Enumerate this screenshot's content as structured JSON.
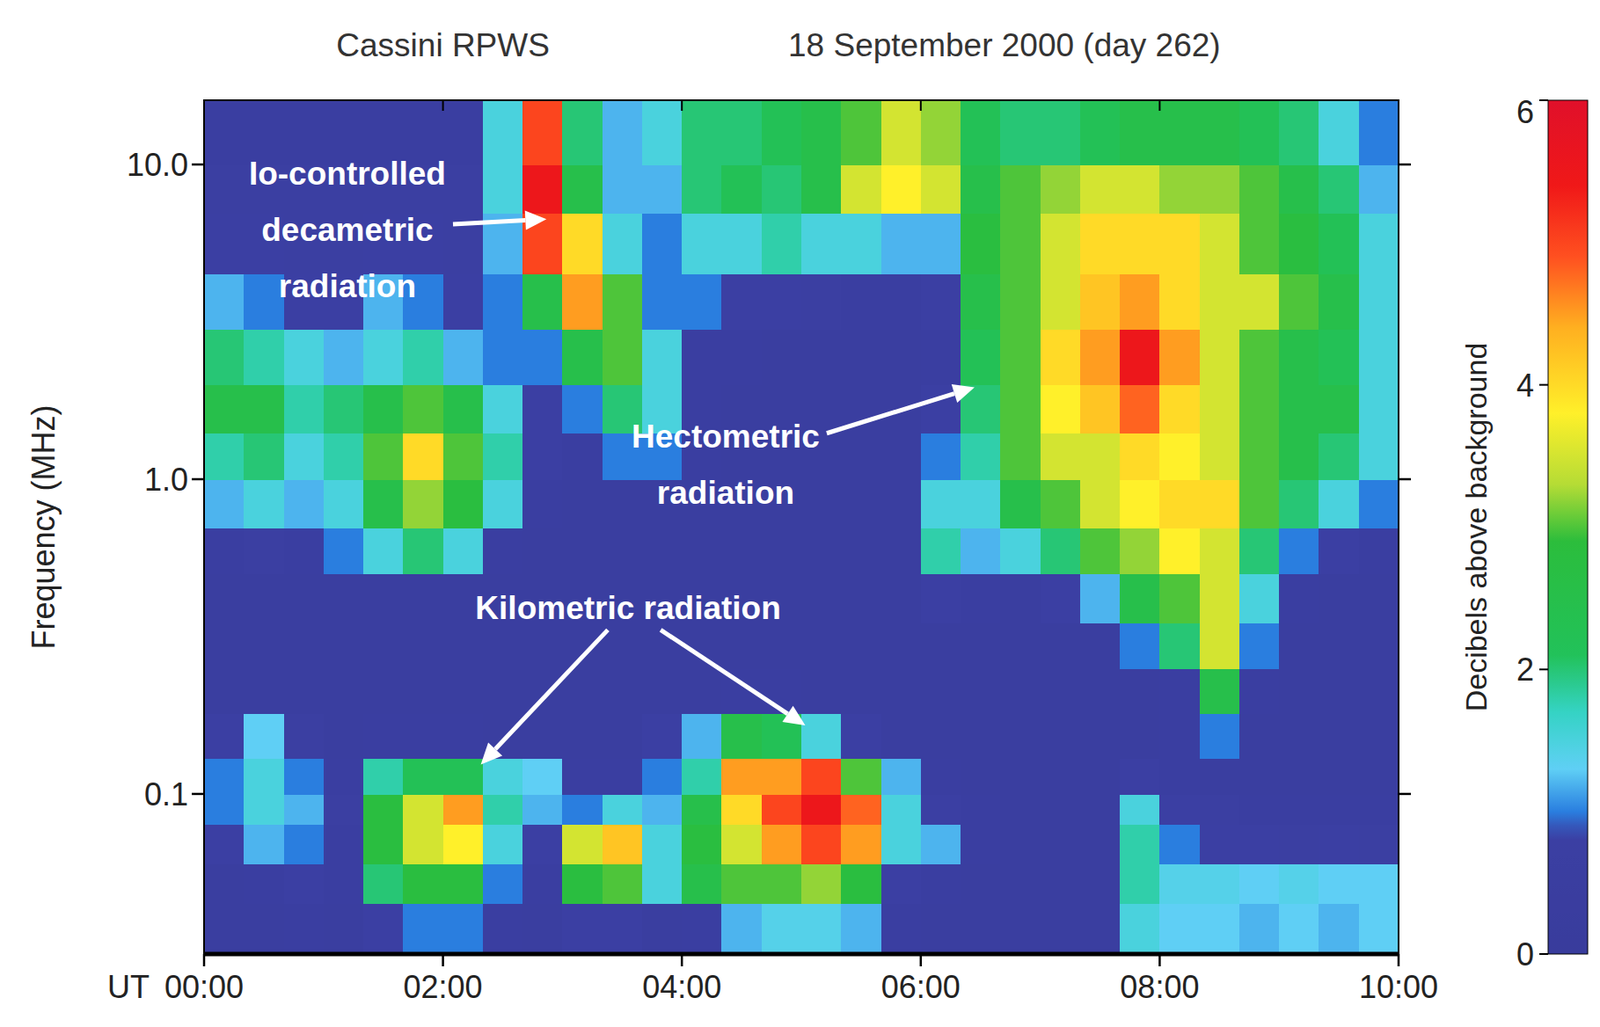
{
  "chart_data": {
    "type": "heatmap",
    "title": "Cassini RPWS",
    "subtitle": "18 September 2000 (day 262)",
    "x_label": "UT",
    "y_label": "Frequency (MHz)",
    "log": "y",
    "xlim": [
      0,
      600
    ],
    "ylim": [
      0.031,
      16
    ],
    "xticks": [
      {
        "value": 0,
        "label": "00:00"
      },
      {
        "value": 120,
        "label": "02:00"
      },
      {
        "value": 240,
        "label": "04:00"
      },
      {
        "value": 360,
        "label": "06:00"
      },
      {
        "value": 480,
        "label": "08:00"
      },
      {
        "value": 600,
        "label": "10:00"
      }
    ],
    "yticks": [
      0.1,
      {
        "value": 1,
        "label": "1.0"
      },
      {
        "value": 10,
        "label": "10.0"
      }
    ],
    "x_edges": [
      0,
      20,
      40,
      60,
      80,
      100,
      120,
      140,
      160,
      180,
      200,
      220,
      240,
      260,
      280,
      300,
      320,
      340,
      360,
      380,
      400,
      420,
      440,
      460,
      480,
      500,
      520,
      540,
      560,
      580,
      600
    ],
    "y_edges": [
      0.031,
      0.045,
      0.06,
      0.08,
      0.1,
      0.13,
      0.18,
      0.25,
      0.35,
      0.5,
      0.7,
      1.0,
      1.4,
      2.0,
      3.0,
      4.5,
      7,
      10,
      16
    ],
    "z": [
      [
        0.5,
        0.5,
        0.6,
        0.5,
        0.8,
        1.0,
        1.0,
        0.6,
        0.5,
        0.8,
        0.8,
        0.5,
        0.6,
        1.2,
        1.4,
        1.4,
        1.2,
        0.6,
        0.5,
        0.5,
        0.5,
        0.5,
        0.5,
        1.5,
        1.3,
        1.3,
        1.2,
        1.3,
        1.2,
        1.3
      ],
      [
        0.5,
        0.6,
        0.8,
        0.6,
        2.0,
        2.8,
        2.8,
        1.0,
        0.6,
        2.8,
        3.0,
        1.5,
        2.5,
        3.0,
        3.0,
        3.2,
        2.8,
        0.8,
        0.6,
        0.5,
        0.5,
        0.5,
        0.5,
        1.8,
        1.4,
        1.4,
        1.3,
        1.4,
        1.3,
        1.3
      ],
      [
        0.8,
        1.2,
        1.0,
        0.6,
        2.8,
        3.5,
        3.8,
        1.5,
        0.8,
        3.5,
        4.2,
        1.5,
        2.8,
        3.5,
        4.5,
        5.0,
        4.5,
        1.5,
        1.2,
        0.6,
        0.5,
        0.5,
        0.5,
        1.8,
        1.0,
        0.8,
        0.8,
        0.7,
        0.8,
        0.7
      ],
      [
        1.0,
        1.5,
        1.2,
        0.7,
        2.8,
        3.5,
        4.5,
        1.8,
        1.2,
        1.0,
        1.5,
        1.2,
        2.5,
        4.0,
        5.0,
        5.5,
        4.8,
        1.5,
        0.8,
        0.6,
        0.5,
        0.5,
        0.5,
        1.5,
        0.8,
        0.7,
        0.6,
        0.6,
        0.6,
        0.6
      ],
      [
        1.0,
        1.5,
        1.0,
        0.6,
        1.8,
        2.2,
        2.2,
        1.5,
        1.3,
        0.6,
        0.6,
        1.0,
        1.8,
        4.5,
        4.5,
        5.0,
        3.0,
        1.2,
        0.6,
        0.5,
        0.5,
        0.5,
        0.5,
        0.8,
        0.6,
        0.5,
        0.5,
        0.5,
        0.5,
        0.5
      ],
      [
        0.8,
        1.3,
        0.7,
        0.5,
        0.6,
        0.6,
        0.6,
        0.5,
        0.5,
        0.5,
        0.5,
        0.8,
        1.2,
        2.5,
        2.2,
        1.5,
        0.8,
        0.5,
        0.5,
        0.5,
        0.5,
        0.5,
        0.5,
        0.5,
        0.6,
        1.0,
        0.5,
        0.5,
        0.5,
        0.5
      ],
      [
        0.5,
        0.5,
        0.5,
        0.5,
        0.5,
        0.5,
        0.5,
        0.5,
        0.5,
        0.5,
        0.5,
        0.5,
        0.5,
        0.6,
        0.6,
        0.5,
        0.5,
        0.5,
        0.5,
        0.5,
        0.5,
        0.5,
        0.5,
        0.5,
        0.6,
        2.5,
        0.6,
        0.5,
        0.5,
        0.5
      ],
      [
        0.5,
        0.5,
        0.5,
        0.5,
        0.5,
        0.5,
        0.5,
        0.5,
        0.5,
        0.5,
        0.5,
        0.5,
        0.5,
        0.5,
        0.5,
        0.5,
        0.5,
        0.5,
        0.5,
        0.5,
        0.5,
        0.5,
        0.5,
        1.0,
        2.0,
        3.5,
        1.0,
        0.5,
        0.5,
        0.5
      ],
      [
        0.5,
        0.5,
        0.5,
        0.5,
        0.5,
        0.5,
        0.5,
        0.5,
        0.5,
        0.5,
        0.5,
        0.5,
        0.5,
        0.5,
        0.5,
        0.5,
        0.5,
        0.5,
        0.8,
        0.6,
        0.5,
        0.8,
        1.2,
        2.5,
        3.0,
        3.5,
        1.5,
        0.6,
        0.5,
        0.5
      ],
      [
        0.6,
        0.7,
        0.6,
        1.0,
        1.5,
        2.0,
        1.5,
        0.6,
        0.5,
        0.5,
        0.5,
        0.5,
        0.5,
        0.5,
        0.5,
        0.5,
        0.5,
        0.5,
        1.8,
        1.2,
        1.5,
        2.0,
        3.0,
        3.2,
        3.8,
        3.5,
        2.0,
        1.0,
        0.8,
        0.6
      ],
      [
        1.2,
        1.5,
        1.2,
        1.5,
        2.5,
        3.2,
        2.8,
        1.5,
        0.6,
        0.5,
        0.5,
        0.5,
        0.5,
        0.5,
        0.5,
        0.5,
        0.5,
        0.5,
        1.5,
        1.5,
        2.5,
        3.0,
        3.5,
        3.8,
        4.0,
        4.0,
        3.0,
        2.0,
        1.5,
        1.0
      ],
      [
        1.8,
        2.0,
        1.5,
        1.8,
        3.0,
        4.0,
        3.0,
        1.8,
        0.8,
        0.6,
        1.0,
        1.0,
        0.6,
        0.5,
        0.5,
        0.5,
        0.5,
        0.5,
        1.0,
        1.8,
        3.0,
        3.5,
        3.5,
        4.0,
        3.8,
        3.5,
        3.0,
        2.5,
        2.0,
        1.5
      ],
      [
        2.5,
        2.5,
        1.8,
        2.0,
        2.5,
        3.0,
        2.5,
        1.5,
        0.8,
        1.0,
        2.0,
        1.5,
        0.6,
        0.5,
        0.5,
        0.5,
        0.5,
        0.5,
        0.8,
        2.0,
        3.0,
        3.8,
        4.2,
        4.8,
        4.0,
        3.5,
        3.0,
        2.5,
        2.5,
        1.5
      ],
      [
        2.0,
        1.8,
        1.5,
        1.2,
        1.5,
        1.8,
        1.2,
        1.0,
        1.0,
        2.5,
        3.0,
        1.5,
        0.6,
        0.6,
        0.5,
        0.5,
        0.5,
        0.5,
        0.6,
        2.2,
        3.0,
        4.0,
        4.5,
        5.5,
        4.5,
        3.5,
        3.0,
        2.5,
        2.2,
        1.5
      ],
      [
        1.2,
        1.0,
        0.8,
        0.8,
        1.2,
        1.0,
        0.8,
        1.0,
        2.5,
        4.5,
        3.0,
        1.0,
        1.0,
        0.8,
        0.8,
        0.7,
        0.6,
        0.6,
        0.8,
        2.5,
        3.0,
        3.5,
        4.2,
        4.5,
        4.0,
        3.5,
        3.5,
        3.0,
        2.5,
        1.5
      ],
      [
        0.8,
        0.8,
        0.7,
        0.7,
        0.8,
        0.8,
        0.7,
        1.2,
        5.0,
        4.0,
        1.5,
        1.0,
        1.5,
        1.5,
        1.8,
        1.5,
        1.5,
        1.2,
        1.2,
        2.8,
        3.0,
        3.5,
        4.0,
        4.0,
        4.0,
        3.5,
        3.0,
        2.8,
        2.2,
        1.5
      ],
      [
        0.7,
        0.7,
        0.7,
        0.7,
        0.7,
        0.7,
        0.7,
        1.5,
        5.5,
        2.5,
        1.2,
        1.2,
        2.0,
        2.2,
        2.0,
        2.5,
        3.5,
        3.8,
        3.5,
        2.5,
        3.0,
        3.2,
        3.5,
        3.5,
        3.2,
        3.2,
        3.0,
        2.5,
        2.0,
        1.2
      ],
      [
        0.6,
        0.6,
        0.6,
        0.6,
        0.6,
        0.6,
        0.6,
        1.5,
        5.0,
        2.0,
        1.2,
        1.5,
        2.0,
        2.0,
        2.2,
        2.5,
        3.0,
        3.5,
        3.2,
        2.2,
        2.0,
        2.0,
        2.2,
        2.5,
        2.5,
        2.5,
        2.2,
        2.0,
        1.5,
        1.0
      ]
    ],
    "colorbar": {
      "range": [
        0,
        6
      ],
      "ticks": [
        0,
        2,
        4,
        6
      ],
      "label": "Decibels above background"
    },
    "annotations": [
      {
        "text": [
          "Io-controlled",
          "decametric",
          "radiation"
        ],
        "xytext": [
          72,
          9.4
        ],
        "xy": [
          [
            172,
            6.7
          ]
        ]
      },
      {
        "text": [
          "Hectometric",
          "radiation"
        ],
        "xytext": [
          262,
          1.37
        ],
        "xy": [
          [
            387,
            1.96
          ]
        ]
      },
      {
        "text": [
          "Kilometric radiation"
        ],
        "xytext": [
          213,
          0.39
        ],
        "xy": [
          [
            139,
            0.124
          ],
          [
            302,
            0.165
          ]
        ]
      }
    ]
  }
}
